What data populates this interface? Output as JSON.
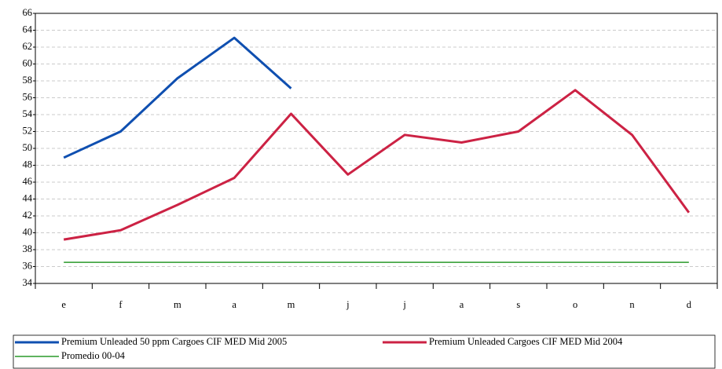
{
  "chart_data": {
    "type": "line",
    "categories": [
      "e",
      "f",
      "m",
      "a",
      "m",
      "j",
      "j",
      "a",
      "s",
      "o",
      "n",
      "d"
    ],
    "series": [
      {
        "name": "Premium Unleaded 50 ppm Cargoes CIF MED Mid 2005",
        "color": "#0f4fb0",
        "values": [
          48.9,
          52.0,
          58.3,
          63.1,
          57.1,
          null,
          null,
          null,
          null,
          null,
          null,
          null
        ]
      },
      {
        "name": "Premium Unleaded Cargoes CIF MED Mid 2004",
        "color": "#cc2244",
        "values": [
          39.2,
          40.3,
          43.3,
          46.5,
          54.1,
          46.9,
          51.6,
          50.7,
          52.0,
          56.9,
          51.6,
          42.4
        ]
      },
      {
        "name": "Promedio 00-04",
        "color": "#2a9a2a",
        "values": [
          36.5,
          36.5,
          36.5,
          36.5,
          36.5,
          36.5,
          36.5,
          36.5,
          36.5,
          36.5,
          36.5,
          36.5
        ]
      }
    ],
    "ylim": [
      34,
      66
    ],
    "yticks": [
      34,
      36,
      38,
      40,
      42,
      44,
      46,
      48,
      50,
      52,
      54,
      56,
      58,
      60,
      62,
      64,
      66
    ],
    "grid": true
  }
}
